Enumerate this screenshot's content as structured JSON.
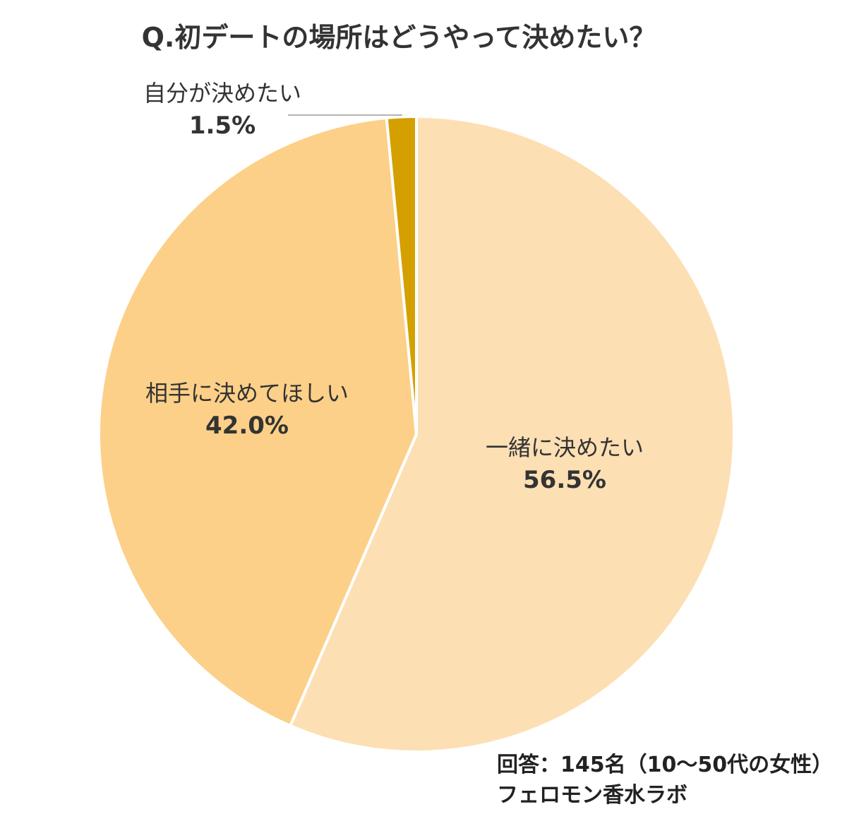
{
  "chart_data": {
    "type": "pie",
    "title": "Q.初デートの場所はどうやって決めたい？",
    "slices": [
      {
        "label": "一緒に決めたい",
        "value": 56.5,
        "value_label": "56.5%",
        "color": "#FDDFB4"
      },
      {
        "label": "相手に決めてほしい",
        "value": 42.0,
        "value_label": "42.0%",
        "color": "#FCD088"
      },
      {
        "label": "自分が決めたい",
        "value": 1.5,
        "value_label": "1.5%",
        "color": "#D4A000"
      }
    ],
    "start_angle": "12 o'clock",
    "direction": "clockwise"
  },
  "footnote": {
    "line1": "回答：145名（10～50代の女性）",
    "line2": "フェロモン香水ラボ"
  }
}
